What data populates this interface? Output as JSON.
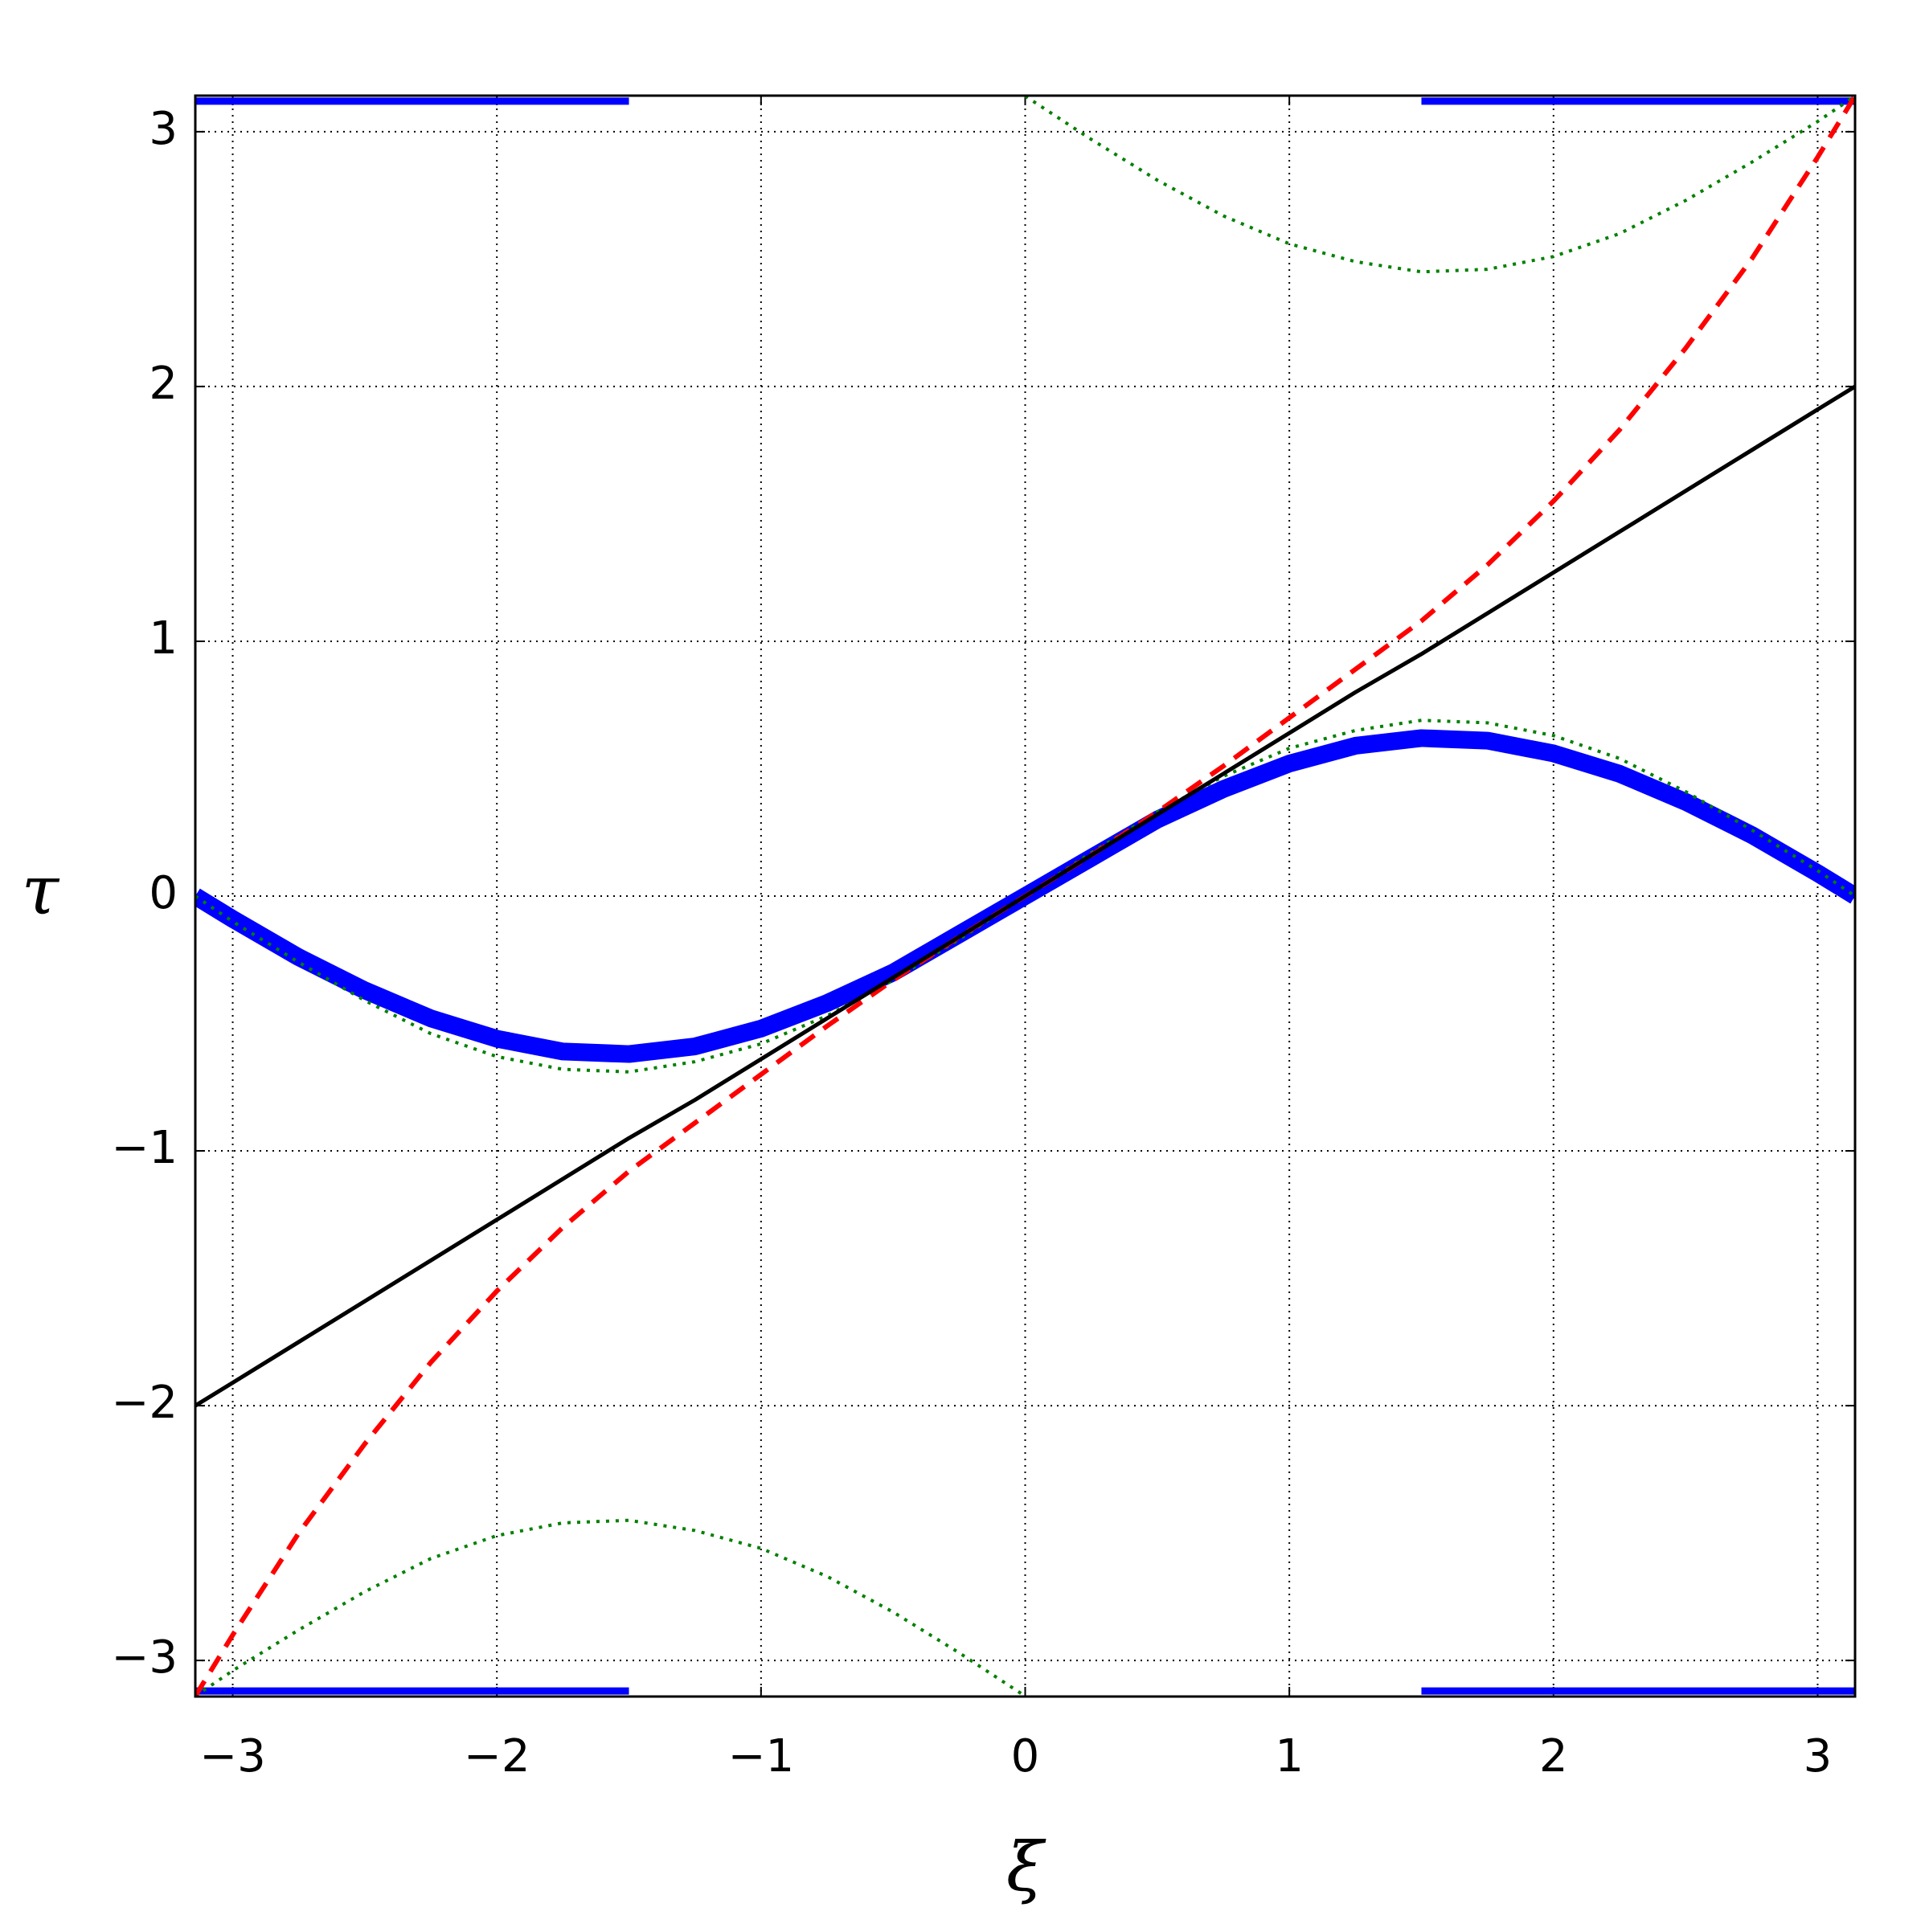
{
  "chart_data": {
    "type": "line",
    "xlabel": "ξ",
    "ylabel": "τ",
    "x": [
      -3.1416,
      -3,
      -2.75,
      -2.5,
      -2.25,
      -2,
      -1.75,
      -1.5,
      -1.25,
      -1,
      -0.75,
      -0.5,
      -0.25,
      0,
      0.25,
      0.5,
      0.75,
      1,
      1.25,
      1.5,
      1.75,
      2,
      2.25,
      2.5,
      2.75,
      3,
      3.1416
    ],
    "series": [
      {
        "color": "#0000ff",
        "linestyle": "markers",
        "values": [
          0,
          -0.09,
          -0.24,
          -0.37,
          -0.48,
          -0.56,
          -0.61,
          -0.62,
          -0.59,
          -0.52,
          -0.42,
          -0.3,
          -0.15,
          0,
          0.15,
          0.3,
          0.42,
          0.52,
          0.59,
          0.62,
          0.61,
          0.56,
          0.48,
          0.37,
          0.24,
          0.09,
          0
        ]
      },
      {
        "color": "#0000ff",
        "linestyle": "band",
        "values": [
          3.12,
          3.12,
          3.12,
          3.12,
          3.12,
          3.12,
          3.12,
          3.12,
          null,
          null,
          null,
          null,
          null,
          null,
          null,
          null,
          null,
          null,
          null,
          3.12,
          3.12,
          3.12,
          3.12,
          3.12,
          3.12,
          3.12,
          3.12
        ]
      },
      {
        "color": "#0000ff",
        "linestyle": "band",
        "values": [
          -3.12,
          -3.12,
          -3.12,
          -3.12,
          -3.12,
          -3.12,
          -3.12,
          -3.12,
          null,
          null,
          null,
          null,
          null,
          null,
          null,
          null,
          null,
          null,
          null,
          -3.12,
          -3.12,
          -3.12,
          -3.12,
          -3.12,
          -3.12,
          -3.12,
          -3.12
        ]
      },
      {
        "color": "#008000",
        "linestyle": "dotted",
        "values": [
          0,
          -0.1,
          -0.26,
          -0.41,
          -0.54,
          -0.63,
          -0.68,
          -0.69,
          -0.65,
          -0.58,
          -0.47,
          -0.33,
          -0.17,
          0,
          0.17,
          0.33,
          0.47,
          0.58,
          0.65,
          0.69,
          0.68,
          0.63,
          0.54,
          0.41,
          0.26,
          0.1,
          0
        ]
      },
      {
        "color": "#008000",
        "linestyle": "dotted",
        "values": [
          null,
          null,
          null,
          null,
          null,
          null,
          null,
          null,
          null,
          null,
          null,
          null,
          null,
          3.14,
          2.97,
          2.81,
          2.67,
          2.56,
          2.49,
          2.45,
          2.46,
          2.51,
          2.6,
          2.73,
          2.88,
          3.04,
          3.14
        ]
      },
      {
        "color": "#008000",
        "linestyle": "dotted",
        "values": [
          -3.14,
          -3.04,
          -2.88,
          -2.73,
          -2.6,
          -2.51,
          -2.46,
          -2.45,
          -2.49,
          -2.56,
          -2.67,
          -2.81,
          -2.97,
          -3.14,
          null,
          null,
          null,
          null,
          null,
          null,
          null,
          null,
          null,
          null,
          null,
          null,
          null
        ]
      },
      {
        "color": "#ff0000",
        "linestyle": "dashed",
        "values": [
          -3.14,
          -2.9,
          -2.5,
          -2.15,
          -1.83,
          -1.55,
          -1.3,
          -1.08,
          -0.89,
          -0.7,
          -0.51,
          -0.33,
          -0.16,
          0,
          0.16,
          0.33,
          0.51,
          0.7,
          0.89,
          1.08,
          1.3,
          1.55,
          1.83,
          2.15,
          2.5,
          2.9,
          3.14
        ]
      },
      {
        "color": "#000000",
        "linestyle": "solid",
        "values": [
          -2.0,
          -1.91,
          -1.75,
          -1.59,
          -1.43,
          -1.27,
          -1.11,
          -0.95,
          -0.8,
          -0.64,
          -0.48,
          -0.32,
          -0.16,
          0,
          0.16,
          0.32,
          0.48,
          0.64,
          0.8,
          0.95,
          1.11,
          1.27,
          1.43,
          1.59,
          1.75,
          1.91,
          2.0
        ]
      }
    ],
    "xlim": [
      -3.1416,
      3.1416
    ],
    "ylim": [
      -3.1416,
      3.1416
    ],
    "xticks": [
      {
        "value": -3,
        "label": "−3"
      },
      {
        "value": -2,
        "label": "−2"
      },
      {
        "value": -1,
        "label": "−1"
      },
      0,
      1,
      2,
      3
    ],
    "yticks": [
      {
        "value": -3,
        "label": "−3"
      },
      {
        "value": -2,
        "label": "−2"
      },
      {
        "value": -1,
        "label": "−1"
      },
      0,
      1,
      2,
      3
    ],
    "grid": true
  }
}
